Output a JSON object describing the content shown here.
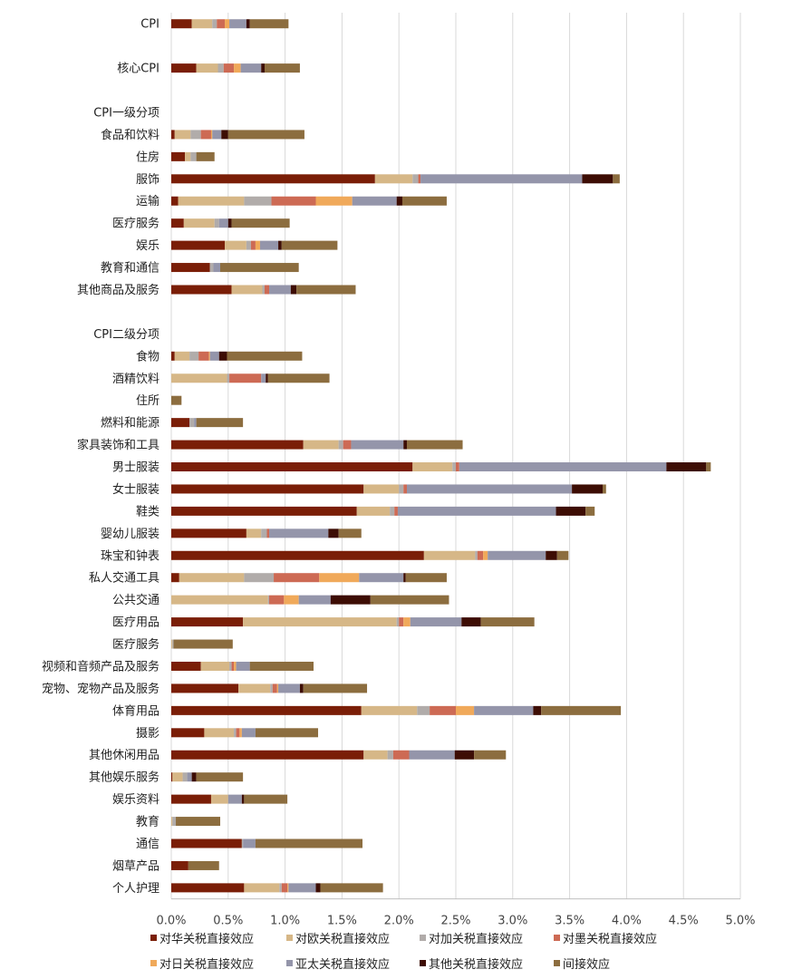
{
  "chart_data": {
    "type": "bar",
    "orientation": "horizontal",
    "stacked": true,
    "title": "",
    "xlabel": "",
    "ylabel": "",
    "xlim": [
      0,
      0.05
    ],
    "x_ticks": [
      0,
      0.005,
      0.01,
      0.015,
      0.02,
      0.025,
      0.03,
      0.035,
      0.04,
      0.045,
      0.05
    ],
    "x_tick_labels": [
      "0.0%",
      "0.5%",
      "1.0%",
      "1.5%",
      "2.0%",
      "2.5%",
      "3.0%",
      "3.5%",
      "4.0%",
      "4.5%",
      "5.0%"
    ],
    "grid": "vertical",
    "legend_position": "bottom",
    "rows": [
      {
        "label": "CPI",
        "values": [
          0.0018,
          0.0018,
          0.0004,
          0.0007,
          0.0004,
          0.0015,
          0.0003,
          0.0034
        ]
      },
      {
        "label": "",
        "values": null
      },
      {
        "label": "核心CPI",
        "values": [
          0.0022,
          0.0019,
          0.0005,
          0.0009,
          0.0006,
          0.0018,
          0.0003,
          0.0031
        ]
      },
      {
        "label": "",
        "values": null
      },
      {
        "label": "CPI一级分项",
        "values": null
      },
      {
        "label": "食品和饮料",
        "values": [
          0.0003,
          0.0014,
          0.0009,
          0.0009,
          0.0001,
          0.0008,
          0.0006,
          0.0067
        ]
      },
      {
        "label": "住房",
        "values": [
          0.0012,
          0.0005,
          0.0005,
          0,
          0,
          0,
          0,
          0.0016
        ]
      },
      {
        "label": "服饰",
        "values": [
          0.0179,
          0.0033,
          0.0005,
          0.0002,
          0,
          0.0142,
          0.0027,
          0.0006
        ]
      },
      {
        "label": "运输",
        "values": [
          0.0006,
          0.0058,
          0.0024,
          0.0039,
          0.0032,
          0.0039,
          0.0005,
          0.0039
        ]
      },
      {
        "label": "医疗服务",
        "values": [
          0.0011,
          0.0027,
          0.0004,
          0,
          0,
          0.0008,
          0.0003,
          0.0051
        ]
      },
      {
        "label": "娱乐",
        "values": [
          0.0047,
          0.0019,
          0.0004,
          0.0004,
          0.0004,
          0.0016,
          0.0003,
          0.0049
        ]
      },
      {
        "label": "教育和通信",
        "values": [
          0.0034,
          0,
          0.0003,
          0,
          0,
          0.0006,
          0,
          0.0069
        ]
      },
      {
        "label": "其他商品及服务",
        "values": [
          0.0053,
          0.0027,
          0.0002,
          0.0004,
          0,
          0.0019,
          0.0005,
          0.0052
        ]
      },
      {
        "label": "",
        "values": null
      },
      {
        "label": "CPI二级分项",
        "values": null
      },
      {
        "label": "食物",
        "values": [
          0.0003,
          0.0013,
          0.0008,
          0.0009,
          0.0001,
          0.0008,
          0.0007,
          0.0066
        ]
      },
      {
        "label": "酒精饮料",
        "values": [
          0,
          0.0049,
          0.0002,
          0.0028,
          0,
          0.0004,
          0.0002,
          0.0054
        ]
      },
      {
        "label": "住所",
        "values": [
          0,
          0,
          0,
          0,
          0,
          0,
          0,
          0.0009
        ]
      },
      {
        "label": "燃料和能源",
        "values": [
          0.0016,
          0,
          0.0004,
          0,
          0,
          0.0002,
          0,
          0.0041
        ]
      },
      {
        "label": "家具装饰和工具",
        "values": [
          0.0116,
          0.0031,
          0.0004,
          0.0007,
          0,
          0.0046,
          0.0003,
          0.0049
        ]
      },
      {
        "label": "男士服装",
        "values": [
          0.0212,
          0.0035,
          0.0003,
          0.0003,
          0,
          0.0182,
          0.0035,
          0.0004
        ]
      },
      {
        "label": "女士服装",
        "values": [
          0.0169,
          0.0031,
          0.0004,
          0.0003,
          0,
          0.0145,
          0.0027,
          0.0003
        ]
      },
      {
        "label": "鞋类",
        "values": [
          0.0163,
          0.0029,
          0.0004,
          0.0003,
          0,
          0.0139,
          0.0026,
          0.0008
        ]
      },
      {
        "label": "婴幼儿服装",
        "values": [
          0.0066,
          0.0013,
          0.0005,
          0.0002,
          0,
          0.0052,
          0.0009,
          0.002
        ]
      },
      {
        "label": "珠宝和钟表",
        "values": [
          0.0222,
          0.0045,
          0.0002,
          0.0005,
          0.0004,
          0.0051,
          0.001,
          0.001
        ]
      },
      {
        "label": "私人交通工具",
        "values": [
          0.0007,
          0.0057,
          0.0026,
          0.004,
          0.0035,
          0.0039,
          0.0002,
          0.0036
        ]
      },
      {
        "label": "公共交通",
        "values": [
          0,
          0.0085,
          0.0001,
          0.0013,
          0.0013,
          0.0028,
          0.0035,
          0.0069
        ]
      },
      {
        "label": "医疗用品",
        "values": [
          0.0063,
          0.0135,
          0.0002,
          0.0004,
          0.0006,
          0.0045,
          0.0017,
          0.0047
        ]
      },
      {
        "label": "医疗服务",
        "values": [
          0,
          0.0001,
          0.0001,
          0,
          0,
          0,
          0,
          0.0052
        ]
      },
      {
        "label": "视频和音频产品及服务",
        "values": [
          0.0026,
          0.0025,
          0.0002,
          0.0002,
          0.0002,
          0.0012,
          0,
          0.0056
        ]
      },
      {
        "label": "宠物、宠物产品及服务",
        "values": [
          0.0059,
          0.0028,
          0.0002,
          0.0004,
          0.0001,
          0.0019,
          0.0003,
          0.0056
        ]
      },
      {
        "label": "体育用品",
        "values": [
          0.0167,
          0.0049,
          0.0011,
          0.0023,
          0.0016,
          0.0052,
          0.0007,
          0.007
        ]
      },
      {
        "label": "摄影",
        "values": [
          0.0029,
          0.0026,
          0.0002,
          0.0003,
          0.0002,
          0.0012,
          0,
          0.0055
        ]
      },
      {
        "label": "其他休闲用品",
        "values": [
          0.0169,
          0.0021,
          0.0005,
          0.0014,
          0,
          0.004,
          0.0017,
          0.0028
        ]
      },
      {
        "label": "其他娱乐服务",
        "values": [
          0.0001,
          0.0009,
          0.0004,
          0,
          0,
          0.0004,
          0.0004,
          0.0041
        ]
      },
      {
        "label": "娱乐资料",
        "values": [
          0.0035,
          0.0015,
          0,
          0,
          0,
          0.0012,
          0.0002,
          0.0038
        ]
      },
      {
        "label": "教育",
        "values": [
          0,
          0.0001,
          0.0003,
          0,
          0,
          0,
          0,
          0.0039
        ]
      },
      {
        "label": "通信",
        "values": [
          0.0062,
          0,
          0.0001,
          0,
          0,
          0.0011,
          0,
          0.0094
        ]
      },
      {
        "label": "烟草产品",
        "values": [
          0.0015,
          0,
          0,
          0,
          0,
          0,
          0,
          0.0027
        ]
      },
      {
        "label": "个人护理",
        "values": [
          0.0064,
          0.0031,
          0.0002,
          0.0005,
          0.0001,
          0.0024,
          0.0004,
          0.0055
        ]
      }
    ],
    "series": [
      {
        "name": "对华关税直接效应",
        "color": "#7a1e07"
      },
      {
        "name": "对欧关税直接效应",
        "color": "#d6b787"
      },
      {
        "name": "对加关税直接效应",
        "color": "#b1acaa"
      },
      {
        "name": "对墨关税直接效应",
        "color": "#cd6a54"
      },
      {
        "name": "对日关税直接效应",
        "color": "#f0a95a"
      },
      {
        "name": "亚太关税直接效应",
        "color": "#9495aa"
      },
      {
        "name": "其他关税直接效应",
        "color": "#3d0d04"
      },
      {
        "name": "间接效应",
        "color": "#8c6d3f"
      }
    ]
  },
  "colors": {
    "grid": "#d9d9d9",
    "axis": "#bfbfbf"
  }
}
